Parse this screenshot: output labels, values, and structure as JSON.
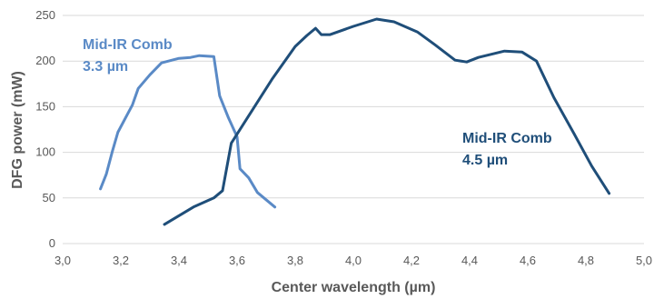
{
  "chart_data": {
    "type": "line",
    "title": "",
    "xlabel": "Center wavelength (µm)",
    "ylabel": "DFG power (mW)",
    "xlim": [
      3.0,
      5.0
    ],
    "ylim": [
      0,
      250
    ],
    "x_ticks": [
      "3,0",
      "3,2",
      "3,4",
      "3,6",
      "3,8",
      "4,0",
      "4,2",
      "4,4",
      "4,6",
      "4,8",
      "5,0"
    ],
    "y_ticks": [
      "0",
      "50",
      "100",
      "150",
      "200",
      "250"
    ],
    "grid": "horizontal",
    "legend": "none",
    "series": [
      {
        "label_line1": "Mid-IR Comb",
        "label_line2": "3.3 µm",
        "color": "#5a8ac6",
        "points": [
          [
            3.13,
            60
          ],
          [
            3.15,
            76
          ],
          [
            3.17,
            100
          ],
          [
            3.19,
            122
          ],
          [
            3.22,
            140
          ],
          [
            3.24,
            152
          ],
          [
            3.26,
            170
          ],
          [
            3.3,
            185
          ],
          [
            3.34,
            198
          ],
          [
            3.4,
            203
          ],
          [
            3.44,
            204
          ],
          [
            3.47,
            206
          ],
          [
            3.52,
            205
          ],
          [
            3.54,
            162
          ],
          [
            3.57,
            138
          ],
          [
            3.6,
            117
          ],
          [
            3.61,
            82
          ],
          [
            3.64,
            72
          ],
          [
            3.67,
            56
          ],
          [
            3.7,
            48
          ],
          [
            3.73,
            40
          ]
        ]
      },
      {
        "label_line1": "Mid-IR Comb",
        "label_line2": "4.5 µm",
        "color": "#1f4e79",
        "points": [
          [
            3.35,
            21
          ],
          [
            3.45,
            40
          ],
          [
            3.52,
            50
          ],
          [
            3.55,
            58
          ],
          [
            3.58,
            110
          ],
          [
            3.65,
            145
          ],
          [
            3.72,
            180
          ],
          [
            3.8,
            216
          ],
          [
            3.84,
            228
          ],
          [
            3.87,
            236
          ],
          [
            3.89,
            229
          ],
          [
            3.92,
            229
          ],
          [
            4.0,
            238
          ],
          [
            4.08,
            246
          ],
          [
            4.14,
            243
          ],
          [
            4.22,
            232
          ],
          [
            4.28,
            218
          ],
          [
            4.35,
            201
          ],
          [
            4.39,
            199
          ],
          [
            4.43,
            204
          ],
          [
            4.52,
            211
          ],
          [
            4.58,
            210
          ],
          [
            4.63,
            200
          ],
          [
            4.69,
            160
          ],
          [
            4.76,
            120
          ],
          [
            4.82,
            85
          ],
          [
            4.88,
            55
          ]
        ]
      }
    ]
  }
}
